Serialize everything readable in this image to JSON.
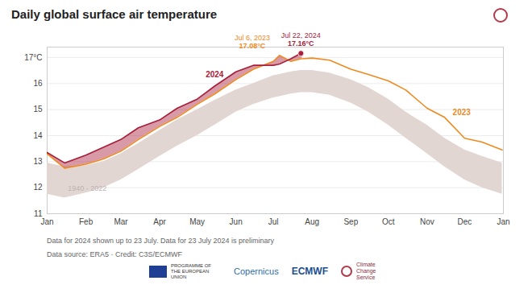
{
  "chart_data": {
    "type": "line",
    "title": "Daily global surface air temperature",
    "x": [
      1,
      15,
      32,
      46,
      60,
      74,
      91,
      105,
      121,
      135,
      152,
      166,
      182,
      187,
      196,
      204,
      205,
      213,
      227,
      244,
      258,
      274,
      288,
      305,
      319,
      335,
      349,
      365
    ],
    "xlim": [
      1,
      366
    ],
    "xticks": [
      {
        "value": 1,
        "label": "Jan"
      },
      {
        "value": 32,
        "label": "Feb"
      },
      {
        "value": 60,
        "label": "Mar"
      },
      {
        "value": 91,
        "label": "Apr"
      },
      {
        "value": 121,
        "label": "May"
      },
      {
        "value": 152,
        "label": "Jun"
      },
      {
        "value": 182,
        "label": "Jul"
      },
      {
        "value": 213,
        "label": "Aug"
      },
      {
        "value": 244,
        "label": "Sep"
      },
      {
        "value": 274,
        "label": "Oct"
      },
      {
        "value": 305,
        "label": "Nov"
      },
      {
        "value": 335,
        "label": "Dec"
      },
      {
        "value": 366,
        "label": "Jan"
      }
    ],
    "ylim": [
      11,
      17.4
    ],
    "yticks": [
      11,
      12,
      13,
      14,
      15,
      16,
      {
        "value": 17,
        "label": "17°C"
      }
    ],
    "grid": true,
    "band": {
      "name": "1940 - 2022",
      "color": "#e2d6d3",
      "lower": [
        11.75,
        11.6,
        11.8,
        12.0,
        12.3,
        12.7,
        13.2,
        13.6,
        14.0,
        14.4,
        14.9,
        15.2,
        15.45,
        15.5,
        15.6,
        15.65,
        15.65,
        15.65,
        15.55,
        15.25,
        14.9,
        14.4,
        13.9,
        13.3,
        12.8,
        12.3,
        12.0,
        11.75
      ],
      "upper": [
        12.95,
        12.8,
        12.85,
        13.0,
        13.3,
        13.7,
        14.2,
        14.6,
        15.0,
        15.35,
        15.75,
        16.0,
        16.3,
        16.35,
        16.45,
        16.5,
        16.5,
        16.5,
        16.4,
        16.15,
        15.85,
        15.4,
        14.9,
        14.4,
        13.9,
        13.45,
        13.2,
        12.95
      ]
    },
    "series": [
      {
        "name": "2023",
        "color": "#ee8a1f",
        "values": [
          13.3,
          12.75,
          12.9,
          13.1,
          13.4,
          13.85,
          14.35,
          14.7,
          15.2,
          15.6,
          16.15,
          16.55,
          16.85,
          17.08,
          16.85,
          16.95,
          16.95,
          16.98,
          16.9,
          16.55,
          16.35,
          16.1,
          15.75,
          15.05,
          14.7,
          13.9,
          13.75,
          13.45
        ]
      },
      {
        "name": "2024",
        "color": "#a8203b",
        "values": [
          13.35,
          12.95,
          13.25,
          13.55,
          13.85,
          14.3,
          14.6,
          15.05,
          15.4,
          15.9,
          16.45,
          16.7,
          16.7,
          16.75,
          16.95,
          17.16,
          17.1,
          null,
          null,
          null,
          null,
          null,
          null,
          null,
          null,
          null,
          null,
          null
        ]
      }
    ],
    "annotations": [
      {
        "series": "2023",
        "x": 187,
        "value": 17.08,
        "date": "Jul 6, 2023",
        "label": "17.08°C"
      },
      {
        "series": "2024",
        "x": 204,
        "value": 17.16,
        "date": "Jul 22, 2024",
        "label": "17.16°C",
        "marker": "circle"
      }
    ],
    "notes": [
      "Data for 2024 shown up to 23 July. Data for 23 July 2024 is preliminary",
      "Data source: ERA5 · Credit: C3S/ECMWF"
    ],
    "logos": [
      "PROGRAMME OF THE EUROPEAN UNION",
      "Copernicus",
      "ECMWF",
      "Climate Change Service"
    ]
  }
}
